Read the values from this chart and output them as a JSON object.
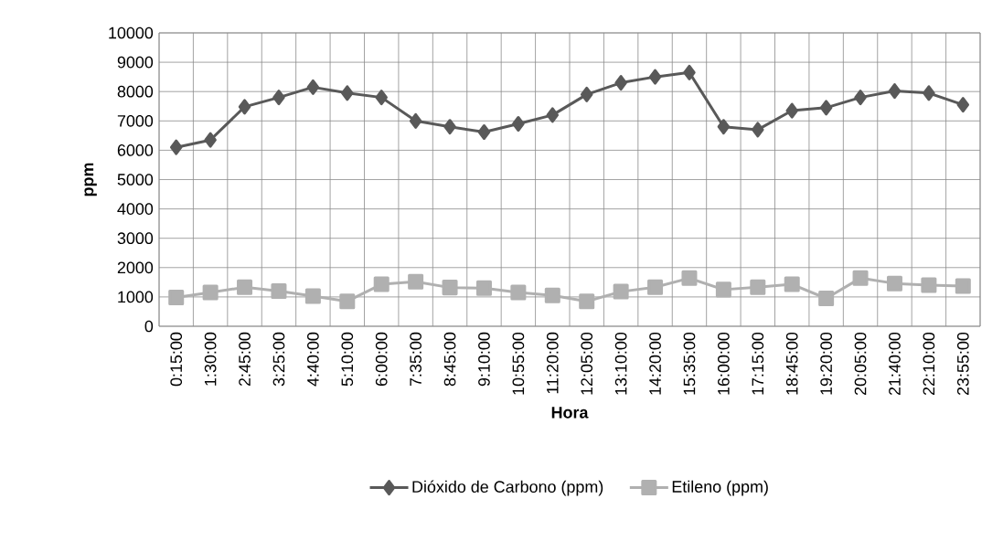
{
  "chart_data": {
    "type": "line",
    "xlabel": "Hora",
    "ylabel": "ppm",
    "categories": [
      "0:15:00",
      "1:30:00",
      "2:45:00",
      "3:25:00",
      "4:40:00",
      "5:10:00",
      "6:00:00",
      "7:35:00",
      "8:45:00",
      "9:10:00",
      "10:55:00",
      "11:20:00",
      "12:05:00",
      "13:10:00",
      "14:20:00",
      "15:35:00",
      "16:00:00",
      "17:15:00",
      "18:45:00",
      "19:20:00",
      "20:05:00",
      "21:40:00",
      "22:10:00",
      "23:55:00"
    ],
    "series": [
      {
        "name": "Dióxido de Carbono (ppm)",
        "color": "#595959",
        "marker": "diamond",
        "values": [
          6100,
          6350,
          7480,
          7800,
          8150,
          7950,
          7800,
          7000,
          6800,
          6620,
          6900,
          7200,
          7900,
          8300,
          8500,
          8650,
          6800,
          6700,
          7350,
          7450,
          7800,
          8020,
          7950,
          7550
        ]
      },
      {
        "name": "Etileno (ppm)",
        "color": "#b0b0b0",
        "marker": "square",
        "values": [
          980,
          1150,
          1330,
          1200,
          1030,
          850,
          1430,
          1520,
          1320,
          1300,
          1150,
          1050,
          850,
          1180,
          1330,
          1640,
          1250,
          1330,
          1430,
          950,
          1640,
          1460,
          1400,
          1370
        ]
      }
    ],
    "ylim": [
      0,
      10000
    ],
    "yticks": [
      0,
      1000,
      2000,
      3000,
      4000,
      5000,
      6000,
      7000,
      8000,
      9000,
      10000
    ],
    "grid": true,
    "legend": "bottom"
  }
}
